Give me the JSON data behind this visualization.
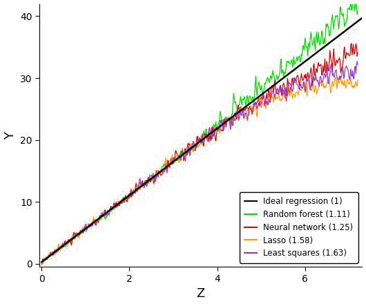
{
  "title": "",
  "xlabel": "Z",
  "ylabel": "Y",
  "xlim": [
    -0.05,
    7.3
  ],
  "ylim": [
    -0.5,
    42
  ],
  "xticks": [
    0,
    2,
    4,
    6
  ],
  "yticks": [
    0,
    10,
    20,
    30,
    40
  ],
  "ideal_slope": 5.4,
  "ideal_intercept": 0.3,
  "scatter_color": "#888888",
  "scatter_alpha": 0.25,
  "scatter_size": 0.8,
  "n_scatter": 2000,
  "seed": 42,
  "legend_entries": [
    {
      "label": "Ideal regression (1)",
      "color": "#000000"
    },
    {
      "label": "Random forest (1.11)",
      "color": "#00DD00"
    },
    {
      "label": "Neural network (1.25)",
      "color": "#DD0000"
    },
    {
      "label": "Lasso (1.58)",
      "color": "#FF9900"
    },
    {
      "label": "Least squares (1.63)",
      "color": "#9933CC"
    }
  ],
  "background_color": "#ffffff",
  "n_curve_points": 500
}
